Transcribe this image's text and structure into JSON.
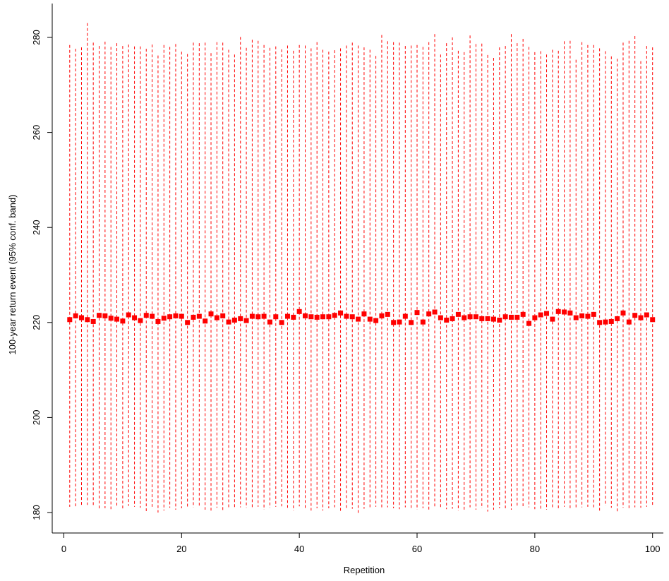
{
  "chart_data": {
    "type": "scatter",
    "title": "",
    "xlabel": "Repetition",
    "ylabel": "100-year return event (95% conf. band)",
    "xlim": [
      -2,
      102
    ],
    "ylim": [
      178,
      287
    ],
    "xticks": [
      0,
      20,
      40,
      60,
      80,
      100
    ],
    "yticks": [
      180,
      200,
      220,
      240,
      260,
      280
    ],
    "grid": false,
    "legend": "none",
    "colors": {
      "points": "#ff0000",
      "error_bars": "#ff0000",
      "axes": "#000000"
    },
    "series": [
      {
        "x": [
          1,
          2,
          3,
          4,
          5,
          6,
          7,
          8,
          9,
          10,
          11,
          12,
          13,
          14,
          15,
          16,
          17,
          18,
          19,
          20,
          21,
          22,
          23,
          24,
          25,
          26,
          27,
          28,
          29,
          30,
          31,
          32,
          33,
          34,
          35,
          36,
          37,
          38,
          39,
          40,
          41,
          42,
          43,
          44,
          45,
          46,
          47,
          48,
          49,
          50,
          51,
          52,
          53,
          54,
          55,
          56,
          57,
          58,
          59,
          60,
          61,
          62,
          63,
          64,
          65,
          66,
          67,
          68,
          69,
          70,
          71,
          72,
          73,
          74,
          75,
          76,
          77,
          78,
          79,
          80,
          81,
          82,
          83,
          84,
          85,
          86,
          87,
          88,
          89,
          90,
          91,
          92,
          93,
          94,
          95,
          96,
          97,
          98,
          99,
          100
        ],
        "estimate": [
          220.6,
          221.4,
          221.0,
          220.6,
          220.2,
          221.5,
          221.4,
          220.9,
          220.7,
          220.3,
          221.6,
          221.0,
          220.4,
          221.5,
          221.3,
          220.2,
          220.9,
          221.2,
          221.4,
          221.3,
          220.0,
          221.1,
          221.3,
          220.3,
          221.8,
          221.0,
          221.4,
          220.1,
          220.5,
          220.8,
          220.4,
          221.3,
          221.2,
          221.3,
          220.1,
          221.2,
          220.0,
          221.3,
          221.1,
          222.3,
          221.4,
          221.2,
          221.1,
          221.2,
          221.2,
          221.5,
          222.0,
          221.3,
          221.2,
          220.7,
          221.8,
          220.7,
          220.4,
          221.4,
          221.7,
          220.0,
          220.1,
          221.3,
          220.0,
          222.1,
          220.1,
          221.8,
          222.2,
          221.0,
          220.5,
          220.8,
          221.7,
          221.0,
          221.2,
          221.2,
          220.8,
          220.8,
          220.7,
          220.5,
          221.2,
          221.1,
          221.1,
          221.7,
          219.8,
          221.0,
          221.6,
          221.9,
          220.7,
          222.3,
          222.2,
          222.0,
          221.0,
          221.4,
          221.3,
          221.7,
          220.0,
          220.1,
          220.2,
          220.8,
          222.0,
          220.1,
          221.5,
          221.0,
          221.6,
          220.6
        ],
        "lower": [
          181.2,
          181.0,
          181.4,
          181.6,
          181.2,
          180.8,
          180.9,
          180.7,
          181.1,
          180.8,
          181.4,
          181.2,
          181.0,
          180.3,
          181.2,
          180.0,
          180.4,
          181.0,
          180.6,
          180.9,
          180.9,
          181.1,
          181.2,
          180.6,
          180.4,
          181.0,
          180.4,
          180.9,
          181.1,
          181.1,
          181.0,
          181.0,
          181.2,
          180.6,
          181.0,
          181.2,
          181.3,
          181.0,
          180.4,
          181.3,
          180.6,
          180.4,
          180.9,
          180.4,
          180.9,
          181.1,
          180.3,
          180.7,
          180.8,
          179.8,
          180.8,
          181.0,
          181.2,
          180.7,
          181.1,
          180.9,
          180.7,
          181.1,
          180.6,
          180.6,
          180.9,
          180.5,
          180.9,
          180.8,
          180.7,
          180.8,
          180.4,
          180.3,
          181.1,
          180.6,
          180.9,
          180.2,
          180.6,
          180.9,
          180.9,
          180.6,
          181.3,
          181.0,
          181.1,
          180.7,
          180.7,
          180.6,
          180.9,
          180.9,
          181.2,
          180.6,
          180.8,
          181.1,
          181.2,
          181.1,
          180.4,
          181.4,
          181.0,
          180.2,
          181.0,
          180.8,
          181.1,
          181.0,
          181.2,
          181.4
        ],
        "upper": [
          278.4,
          277.6,
          277.9,
          283.0,
          278.9,
          278.2,
          279.1,
          278.0,
          278.8,
          278.2,
          278.5,
          278.1,
          278.1,
          277.6,
          278.5,
          276.2,
          278.4,
          278.0,
          278.6,
          277.0,
          276.5,
          278.9,
          278.8,
          278.9,
          276.7,
          279.0,
          278.9,
          277.4,
          276.4,
          280.1,
          277.8,
          279.5,
          279.3,
          278.4,
          277.8,
          278.1,
          277.5,
          278.3,
          277.2,
          278.4,
          278.3,
          277.7,
          279.0,
          277.4,
          277.0,
          277.3,
          277.7,
          278.3,
          278.9,
          278.3,
          277.9,
          277.4,
          276.1,
          280.5,
          279.2,
          279.0,
          278.9,
          278.2,
          278.3,
          278.4,
          278.0,
          279.0,
          280.7,
          276.4,
          278.8,
          280.0,
          277.2,
          276.9,
          280.4,
          278.6,
          278.7,
          276.3,
          275.7,
          277.9,
          278.2,
          280.7,
          278.8,
          279.7,
          278.0,
          276.9,
          277.1,
          276.4,
          277.4,
          277.2,
          279.2,
          279.3,
          275.3,
          279.0,
          278.4,
          278.4,
          277.7,
          277.1,
          276.0,
          275.5,
          278.9,
          279.3,
          280.3,
          275.0,
          278.2,
          277.9
        ]
      }
    ]
  }
}
